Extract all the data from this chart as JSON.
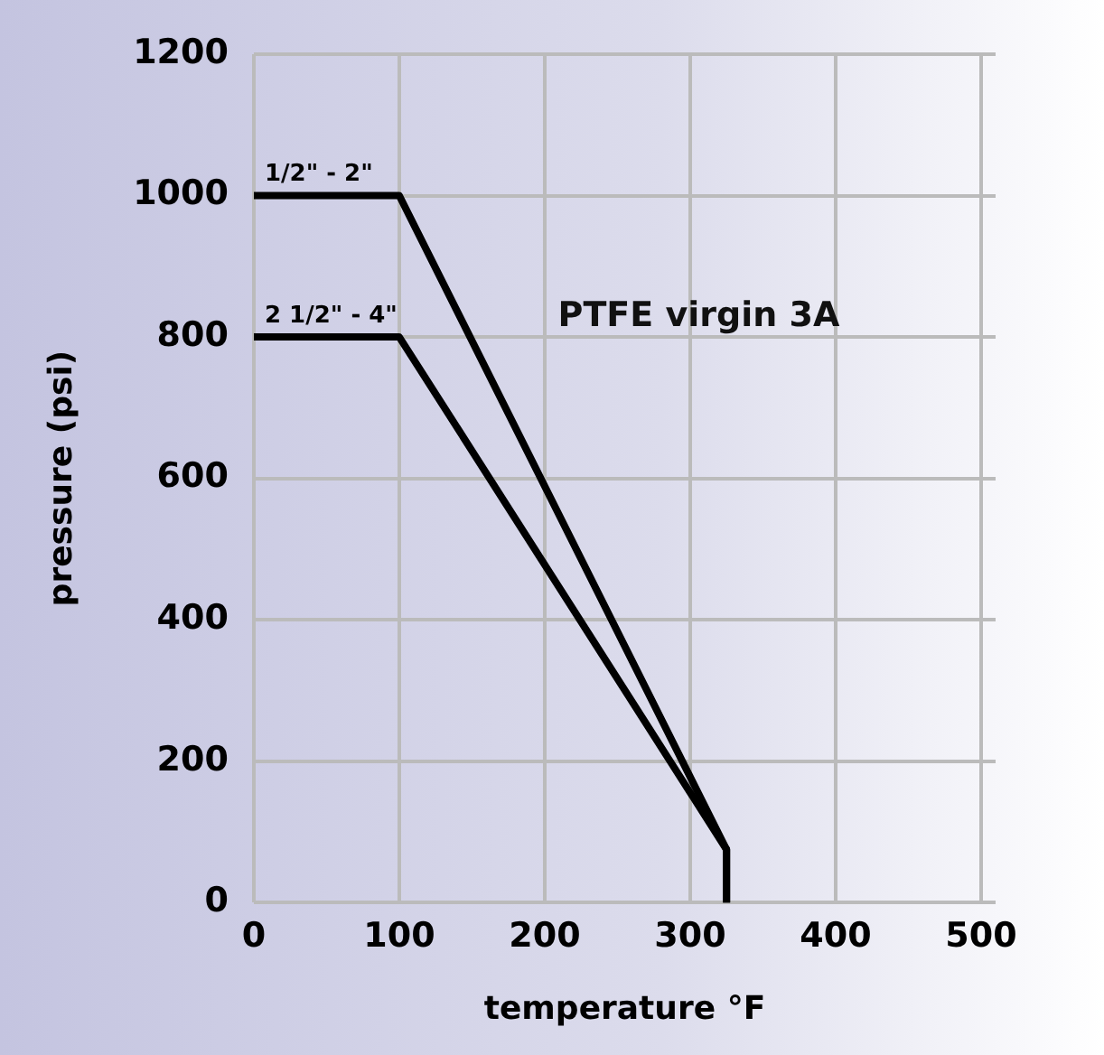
{
  "chart_data": {
    "type": "line",
    "xlabel": "temperature °F",
    "ylabel": "pressure (psi)",
    "xlim": [
      0,
      510
    ],
    "xticks": [
      0,
      100,
      200,
      300,
      400,
      500
    ],
    "ylim": [
      0,
      1200
    ],
    "yticks": [
      0,
      200,
      400,
      600,
      800,
      1000,
      1200
    ],
    "grid": true,
    "legend": false,
    "marker": "none",
    "line_style": "solid",
    "series": [
      {
        "name": "1/2\" - 2\"",
        "color": "#000000",
        "x": [
          0,
          100,
          325,
          325
        ],
        "values": [
          1000,
          1000,
          75,
          0
        ]
      },
      {
        "name": "2 1/2\" - 4\"",
        "color": "#000000",
        "x": [
          0,
          100,
          325,
          325
        ],
        "values": [
          800,
          800,
          75,
          0
        ]
      }
    ],
    "annotations": [
      "PTFE virgin 3A"
    ]
  }
}
